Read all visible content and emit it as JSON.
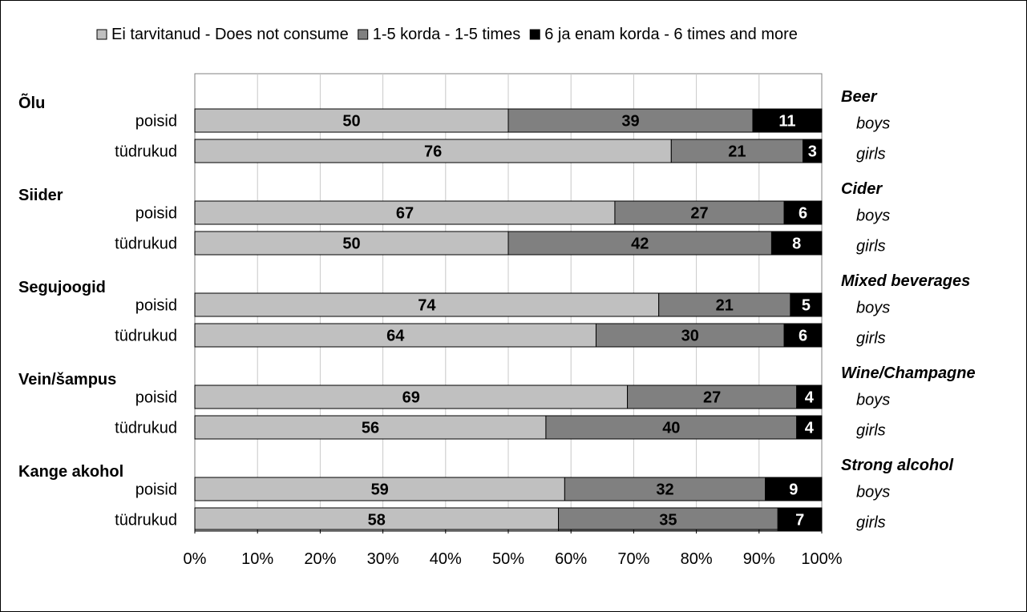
{
  "chart_data": {
    "type": "bar",
    "orientation": "horizontal",
    "stacked": true,
    "percent_axis": true,
    "xlim": [
      0,
      100
    ],
    "x_ticks": [
      "0%",
      "10%",
      "20%",
      "30%",
      "40%",
      "50%",
      "60%",
      "70%",
      "80%",
      "90%",
      "100%"
    ],
    "grid": true,
    "legend_position": "top",
    "series": [
      {
        "name": "Ei tarvitanud - Does not consume",
        "color": "#c0c0c0",
        "label_color": "#000000"
      },
      {
        "name": "1-5 korda - 1-5 times",
        "color": "#808080",
        "label_color": "#000000"
      },
      {
        "name": "6 ja enam korda - 6 times and more",
        "color": "#000000",
        "label_color": "#ffffff"
      }
    ],
    "groups": [
      {
        "label": "Õlu",
        "label_en": "Beer",
        "rows": [
          {
            "label": "poisid",
            "label_en": "boys",
            "values": [
              50,
              39,
              11
            ]
          },
          {
            "label": "tüdrukud",
            "label_en": "girls",
            "values": [
              76,
              21,
              3
            ]
          }
        ]
      },
      {
        "label": "Siider",
        "label_en": "Cider",
        "rows": [
          {
            "label": "poisid",
            "label_en": "boys",
            "values": [
              67,
              27,
              6
            ]
          },
          {
            "label": "tüdrukud",
            "label_en": "girls",
            "values": [
              50,
              42,
              8
            ]
          }
        ]
      },
      {
        "label": "Segujoogid",
        "label_en": "Mixed beverages",
        "rows": [
          {
            "label": "poisid",
            "label_en": "boys",
            "values": [
              74,
              21,
              5
            ]
          },
          {
            "label": "tüdrukud",
            "label_en": "girls",
            "values": [
              64,
              30,
              6
            ]
          }
        ]
      },
      {
        "label": "Vein/šampus",
        "label_en": "Wine/Champagne",
        "rows": [
          {
            "label": "poisid",
            "label_en": "boys",
            "values": [
              69,
              27,
              4
            ]
          },
          {
            "label": "tüdrukud",
            "label_en": "girls",
            "values": [
              56,
              40,
              4
            ]
          }
        ]
      },
      {
        "label": "Kange akohol",
        "label_en": "Strong alcohol",
        "rows": [
          {
            "label": "poisid",
            "label_en": "boys",
            "values": [
              59,
              32,
              9
            ]
          },
          {
            "label": "tüdrukud",
            "label_en": "girls",
            "values": [
              58,
              35,
              7
            ]
          }
        ]
      }
    ]
  }
}
